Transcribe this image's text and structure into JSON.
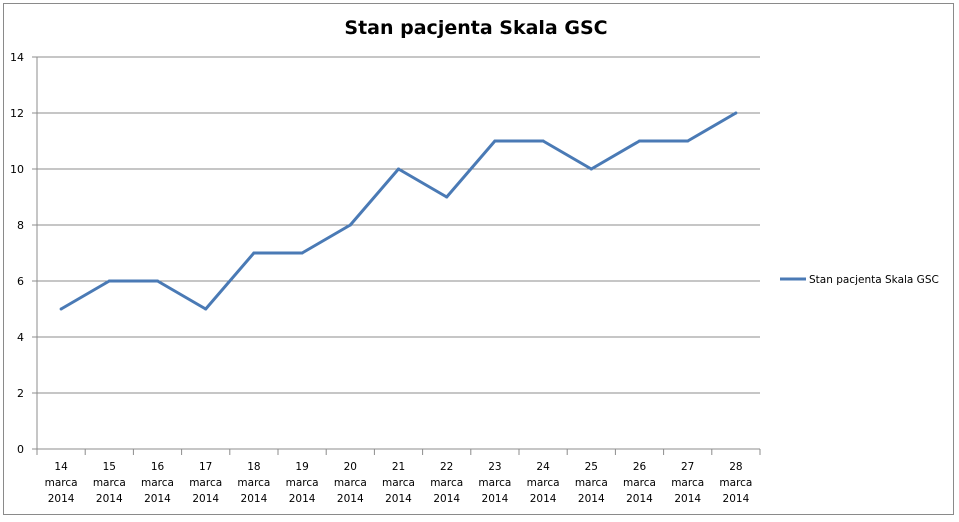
{
  "chart_data": {
    "type": "line",
    "title": "Stan pacjenta Skala GSC",
    "xlabel": "",
    "ylabel": "",
    "ylim": [
      0,
      14
    ],
    "yticks": [
      0,
      2,
      4,
      6,
      8,
      10,
      12,
      14
    ],
    "grid": true,
    "legend_position": "right",
    "categories": [
      [
        "14",
        "marca",
        "2014"
      ],
      [
        "15",
        "marca",
        "2014"
      ],
      [
        "16",
        "marca",
        "2014"
      ],
      [
        "17",
        "marca",
        "2014"
      ],
      [
        "18",
        "marca",
        "2014"
      ],
      [
        "19",
        "marca",
        "2014"
      ],
      [
        "20",
        "marca",
        "2014"
      ],
      [
        "21",
        "marca",
        "2014"
      ],
      [
        "22",
        "marca",
        "2014"
      ],
      [
        "23",
        "marca",
        "2014"
      ],
      [
        "24",
        "marca",
        "2014"
      ],
      [
        "25",
        "marca",
        "2014"
      ],
      [
        "26",
        "marca",
        "2014"
      ],
      [
        "27",
        "marca",
        "2014"
      ],
      [
        "28",
        "marca",
        "2014"
      ]
    ],
    "series": [
      {
        "name": "Stan pacjenta Skala GSC",
        "color": "#4a7ab5",
        "values": [
          5,
          6,
          6,
          5,
          7,
          7,
          8,
          10,
          9,
          11,
          11,
          10,
          11,
          11,
          12
        ]
      }
    ]
  }
}
